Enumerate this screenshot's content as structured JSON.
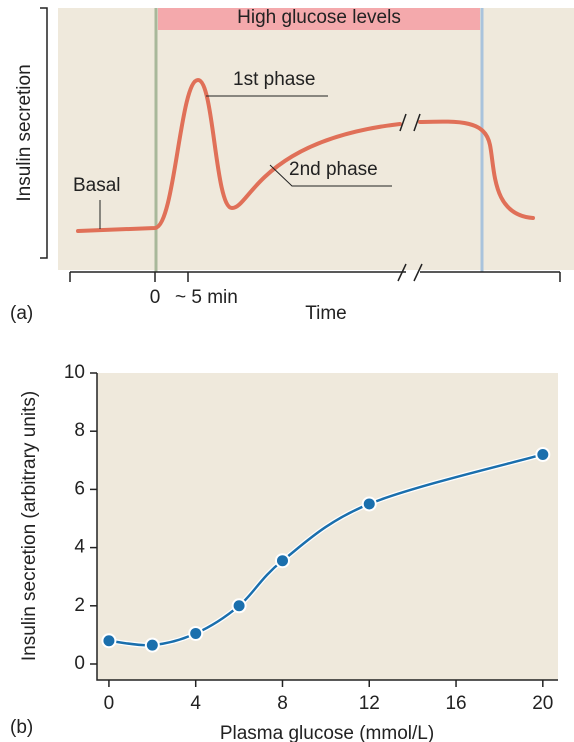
{
  "diagram": {
    "banner": "High glucose levels",
    "y_label": "Insulin secretion",
    "x_label": "Time",
    "panel_label": "(a)",
    "labels": [
      "Basal",
      "1st phase",
      "2nd phase"
    ],
    "x_ticks": [
      "0",
      "~ 5 min"
    ]
  },
  "chart_data": {
    "type": "line",
    "panel_label": "(b)",
    "xlabel": "Plasma glucose (mmol/L)",
    "ylabel": "Insulin secretion (arbitrary units)",
    "x": [
      0,
      2,
      4,
      6,
      8,
      12,
      20
    ],
    "values": [
      0.8,
      0.65,
      1.05,
      2.0,
      3.55,
      5.5,
      7.2
    ],
    "color": "#1a6fad",
    "xlim": [
      -0.55,
      20.7
    ],
    "ylim": [
      -0.55,
      10
    ],
    "xticks": [
      0,
      4,
      8,
      12,
      16,
      20
    ],
    "yticks": [
      0,
      2,
      4,
      6,
      8,
      10
    ]
  }
}
